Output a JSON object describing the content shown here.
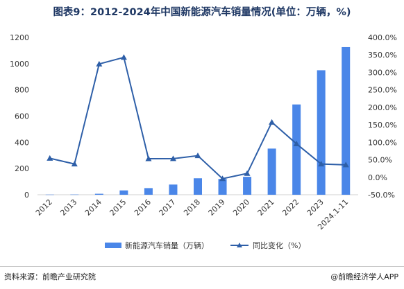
{
  "chart_data": {
    "type": "bar",
    "title": "图表9：2012-2024年中国新能源汽车销量情况(单位：万辆，%)",
    "categories": [
      "2012",
      "2013",
      "2014",
      "2015",
      "2016",
      "2017",
      "2018",
      "2019",
      "2020",
      "2021",
      "2022",
      "2023",
      "2024.1-11"
    ],
    "series": [
      {
        "name": "新能源汽车销量（万辆）",
        "type": "bar",
        "axis": "left",
        "color": "#4a86e8",
        "values": [
          1.3,
          1.8,
          7.5,
          33.1,
          50.7,
          77.7,
          125.6,
          120.6,
          136.7,
          352.1,
          688.7,
          949.5,
          1126.2
        ]
      },
      {
        "name": "同比变化（%）",
        "type": "line",
        "axis": "right",
        "color": "#2e5fa8",
        "values": [
          54.3,
          37.9,
          324.0,
          342.9,
          53.0,
          53.3,
          61.7,
          -4.0,
          10.9,
          157.5,
          95.6,
          37.9,
          35.6
        ]
      }
    ],
    "y_left": {
      "min": 0,
      "max": 1200,
      "ticks": [
        "0",
        "200",
        "400",
        "600",
        "800",
        "1000",
        "1200"
      ]
    },
    "y_right": {
      "min": -50,
      "max": 400,
      "ticks": [
        "-50.0%",
        "0.0%",
        "50.0%",
        "100.0%",
        "150.0%",
        "200.0%",
        "250.0%",
        "300.0%",
        "350.0%",
        "400.0%"
      ]
    },
    "legend_position": "bottom",
    "grid": false
  },
  "footer": {
    "source": "资料来源：前瞻产业研究院",
    "brand": "@前瞻经济学人APP"
  }
}
